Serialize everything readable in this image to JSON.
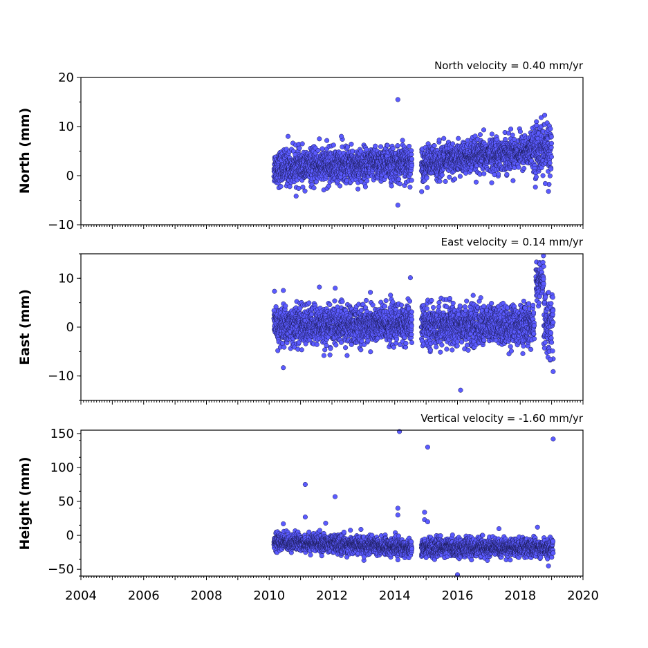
{
  "chart_data": [
    {
      "type": "scatter",
      "velocity_label": "North velocity = 0.40 mm/yr",
      "ylabel": "North (mm)",
      "xlim": [
        2004,
        2020
      ],
      "ylim": [
        -10,
        20
      ],
      "yticks": [
        -10,
        0,
        10,
        20
      ],
      "ytick_labels": [
        "−10",
        "0",
        "10",
        "20"
      ],
      "point_color": "#5b5bff",
      "outliers": [
        [
          2014.1,
          15.5
        ],
        [
          2014.1,
          -6.0
        ],
        [
          2018.9,
          -3.2
        ],
        [
          2018.8,
          -1.6
        ],
        [
          2014.25,
          7.2
        ],
        [
          2011.6,
          7.5
        ],
        [
          2012.3,
          8.0
        ],
        [
          2010.6,
          8.0
        ]
      ],
      "series": [
        {
          "start": 2010.15,
          "end": 2014.55,
          "base": 1.6,
          "trend": 0.2,
          "noise": 1.7
        },
        {
          "start": 2014.85,
          "end": 2018.45,
          "base": 2.4,
          "trend": 0.8,
          "noise": 1.7
        },
        {
          "start": 2018.45,
          "end": 2019.0,
          "base": 5.5,
          "trend": 0.0,
          "noise": 2.6
        }
      ],
      "grid": false
    },
    {
      "type": "scatter",
      "velocity_label": "East velocity = 0.14 mm/yr",
      "ylabel": "East (mm)",
      "xlim": [
        2004,
        2020
      ],
      "ylim": [
        -15,
        15
      ],
      "yticks": [
        -10,
        0,
        10
      ],
      "ytick_labels": [
        "−10",
        "0",
        "10"
      ],
      "point_color": "#5b5bff",
      "outliers": [
        [
          2016.1,
          -12.9
        ],
        [
          2010.45,
          -8.3
        ],
        [
          2010.45,
          7.5
        ],
        [
          2011.6,
          8.2
        ],
        [
          2014.5,
          10.1
        ],
        [
          2019.05,
          -9.1
        ],
        [
          2019.05,
          -6.5
        ],
        [
          2018.95,
          -6.6
        ],
        [
          2016.5,
          6.5
        ]
      ],
      "series": [
        {
          "start": 2010.15,
          "end": 2014.55,
          "base": 0.2,
          "trend": 0.1,
          "noise": 2.0
        },
        {
          "start": 2014.85,
          "end": 2018.45,
          "base": 0.4,
          "trend": 0.0,
          "noise": 2.0
        },
        {
          "start": 2018.5,
          "end": 2018.75,
          "base": 9.0,
          "trend": 0.0,
          "noise": 2.0
        },
        {
          "start": 2018.75,
          "end": 2019.05,
          "base": 1.0,
          "trend": 0.0,
          "noise": 3.0
        }
      ],
      "grid": false
    },
    {
      "type": "scatter",
      "velocity_label": "Vertical velocity = -1.60 mm/yr",
      "ylabel": "Height (mm)",
      "xlim": [
        2004,
        2020
      ],
      "ylim": [
        -60,
        155
      ],
      "yticks": [
        -50,
        0,
        50,
        100,
        150
      ],
      "ytick_labels": [
        "−50",
        "0",
        "50",
        "100",
        "150"
      ],
      "xticks": [
        2004,
        2006,
        2008,
        2010,
        2012,
        2014,
        2016,
        2018,
        2020
      ],
      "xtick_labels": [
        "2004",
        "2006",
        "2008",
        "2010",
        "2012",
        "2014",
        "2016",
        "2018",
        "2020"
      ],
      "point_color": "#5b5bff",
      "outliers": [
        [
          2014.15,
          153
        ],
        [
          2019.05,
          142
        ],
        [
          2015.05,
          130
        ],
        [
          2011.15,
          75
        ],
        [
          2012.1,
          57
        ],
        [
          2014.1,
          40
        ],
        [
          2014.1,
          30
        ],
        [
          2011.15,
          27
        ],
        [
          2014.95,
          34
        ],
        [
          2014.95,
          23
        ],
        [
          2015.05,
          20
        ],
        [
          2011.8,
          18
        ],
        [
          2010.45,
          17
        ],
        [
          2016.0,
          -58
        ],
        [
          2018.9,
          -45
        ],
        [
          2018.55,
          12
        ]
      ],
      "series": [
        {
          "start": 2010.15,
          "end": 2014.55,
          "base": -9.0,
          "trend": -2.0,
          "noise": 6.5
        },
        {
          "start": 2014.85,
          "end": 2019.05,
          "base": -18.0,
          "trend": 0.0,
          "noise": 6.5
        }
      ],
      "grid": false
    }
  ]
}
